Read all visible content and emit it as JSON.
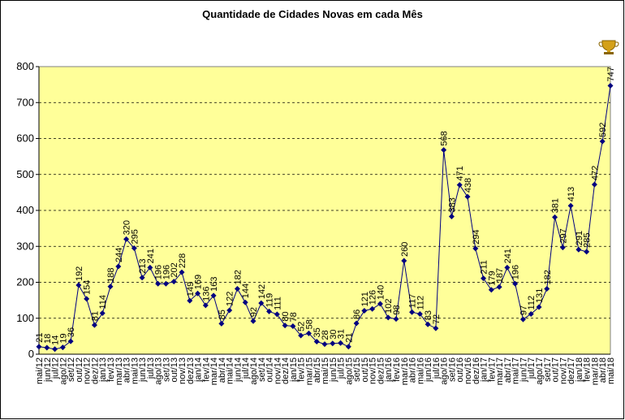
{
  "chart_data": {
    "type": "line",
    "title": "Quantidade de Cidades Novas em cada Mês",
    "categories": [
      "mai/12",
      "jun/12",
      "jul/12",
      "ago/12",
      "set/12",
      "out/12",
      "nov/12",
      "dez/12",
      "jan/13",
      "fev/13",
      "mar/13",
      "abr/13",
      "mai/13",
      "jun/13",
      "jul/13",
      "ago/13",
      "set/13",
      "out/13",
      "nov/13",
      "dez/13",
      "jan/14",
      "fev/14",
      "mar/14",
      "abr/14",
      "mai/14",
      "jun/14",
      "jul/14",
      "ago/14",
      "set/14",
      "out/14",
      "nov/14",
      "dez/14",
      "jan/15",
      "fev/15",
      "mar/15",
      "abr/15",
      "mai/15",
      "jun/15",
      "jul/15",
      "ago/15",
      "set/15",
      "out/15",
      "nov/15",
      "dez/15",
      "jan/16",
      "fev/16",
      "mar/16",
      "abr/16",
      "mai/16",
      "jun/16",
      "jul/16",
      "ago/16",
      "set/16",
      "out/16",
      "nov/16",
      "dez/16",
      "jan/17",
      "fev/17",
      "mar/17",
      "abr/17",
      "mai/17",
      "jun/17",
      "jul/17",
      "ago/17",
      "set/17",
      "out/17",
      "nov/17",
      "dez/17",
      "jan/18",
      "fev/18",
      "mar/18",
      "abr/18",
      "mai/18"
    ],
    "values": [
      21,
      18,
      14,
      19,
      36,
      192,
      154,
      81,
      114,
      188,
      244,
      320,
      295,
      213,
      241,
      196,
      196,
      202,
      228,
      149,
      169,
      136,
      163,
      85,
      122,
      182,
      144,
      92,
      142,
      119,
      111,
      80,
      78,
      52,
      58,
      35,
      28,
      30,
      31,
      21,
      86,
      121,
      126,
      140,
      102,
      98,
      260,
      117,
      112,
      83,
      72,
      568,
      383,
      471,
      438,
      294,
      211,
      179,
      187,
      241,
      196,
      97,
      112,
      131,
      182,
      381,
      297,
      413,
      291,
      285,
      472,
      592,
      747
    ],
    "color": "#000080",
    "ylim": [
      0,
      800
    ],
    "yticks": [
      0,
      100,
      200,
      300,
      400,
      500,
      600,
      700,
      800
    ],
    "grid": true
  }
}
